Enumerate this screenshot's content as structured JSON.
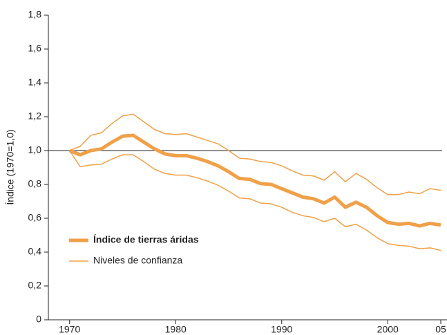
{
  "chart_data": {
    "type": "line",
    "y_label": "Índice (1970=1,0)",
    "x": [
      1970,
      1971,
      1972,
      1973,
      1974,
      1975,
      1976,
      1977,
      1978,
      1979,
      1980,
      1981,
      1982,
      1983,
      1984,
      1985,
      1986,
      1987,
      1988,
      1989,
      1990,
      1991,
      1992,
      1993,
      1994,
      1995,
      1996,
      1997,
      1998,
      1999,
      2000,
      2001,
      2002,
      2003,
      2004,
      2005
    ],
    "series": [
      {
        "name": "Índice de tierras áridas",
        "color": "#f0a048",
        "values": [
          1.0,
          0.975,
          1.0,
          1.01,
          1.05,
          1.085,
          1.09,
          1.05,
          1.01,
          0.98,
          0.97,
          0.97,
          0.955,
          0.935,
          0.91,
          0.875,
          0.835,
          0.83,
          0.805,
          0.8,
          0.775,
          0.75,
          0.725,
          0.715,
          0.69,
          0.725,
          0.665,
          0.695,
          0.665,
          0.615,
          0.575,
          0.565,
          0.57,
          0.555,
          0.57,
          0.56
        ]
      }
    ],
    "confidence": {
      "name": "Niveles de confianza",
      "color": "#f0a048",
      "upper": [
        1.0,
        1.025,
        1.09,
        1.105,
        1.16,
        1.205,
        1.215,
        1.17,
        1.125,
        1.1,
        1.095,
        1.1,
        1.08,
        1.06,
        1.04,
        1.0,
        0.955,
        0.95,
        0.935,
        0.93,
        0.91,
        0.88,
        0.855,
        0.85,
        0.825,
        0.875,
        0.815,
        0.865,
        0.83,
        0.78,
        0.74,
        0.74,
        0.755,
        0.745,
        0.775,
        0.765
      ],
      "lower": [
        1.0,
        0.905,
        0.915,
        0.92,
        0.95,
        0.975,
        0.975,
        0.935,
        0.89,
        0.865,
        0.855,
        0.855,
        0.84,
        0.82,
        0.795,
        0.76,
        0.72,
        0.715,
        0.69,
        0.685,
        0.665,
        0.635,
        0.615,
        0.605,
        0.58,
        0.6,
        0.55,
        0.565,
        0.53,
        0.485,
        0.45,
        0.44,
        0.435,
        0.42,
        0.425,
        0.41
      ]
    },
    "reference_line": 1,
    "xlim": [
      1968,
      2005
    ],
    "ylim": [
      0,
      1.8
    ],
    "xticks": [
      1970,
      1980,
      1990,
      2000,
      {
        "value": 2005,
        "label": "05"
      }
    ],
    "yticks": [
      0,
      {
        "value": 0.2,
        "label": "0,2"
      },
      {
        "value": 0.4,
        "label": "0,4"
      },
      {
        "value": 0.6,
        "label": "0,6"
      },
      {
        "value": 0.8,
        "label": "0,8"
      },
      {
        "value": 1.0,
        "label": "1,0"
      },
      {
        "value": 1.2,
        "label": "1,2"
      },
      {
        "value": 1.4,
        "label": "1,4"
      },
      {
        "value": 1.6,
        "label": "1,6"
      },
      {
        "value": 1.8,
        "label": "1,8"
      }
    ],
    "legend": "lower-left"
  }
}
